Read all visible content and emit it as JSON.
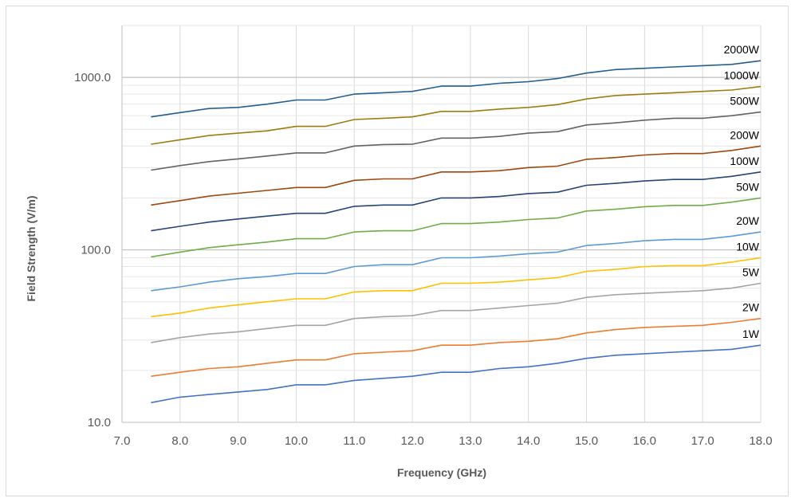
{
  "chart_data": {
    "type": "line",
    "title": "",
    "xlabel": "Frequency (GHz)",
    "ylabel": "Field Strength (V/m)",
    "x_scale": "linear",
    "y_scale": "log",
    "xlim": [
      7.0,
      18.0
    ],
    "ylim": [
      10.0,
      2000.0
    ],
    "x_ticks": [
      7.0,
      8.0,
      9.0,
      10.0,
      11.0,
      12.0,
      13.0,
      14.0,
      15.0,
      16.0,
      17.0,
      18.0
    ],
    "x_tick_labels": [
      "7.0",
      "8.0",
      "9.0",
      "10.0",
      "11.0",
      "12.0",
      "13.0",
      "14.0",
      "15.0",
      "16.0",
      "17.0",
      "18.0"
    ],
    "y_ticks": [
      10,
      100,
      1000
    ],
    "y_tick_labels": [
      "10.0",
      "100.0",
      "1000.0"
    ],
    "grid": true,
    "legend": "labels at line ends (right)",
    "x": [
      7.5,
      8.0,
      8.5,
      9.0,
      9.5,
      10.0,
      10.5,
      11.0,
      11.5,
      12.0,
      12.5,
      13.0,
      13.5,
      14.0,
      14.5,
      15.0,
      15.5,
      16.0,
      16.5,
      17.0,
      17.5,
      18.0
    ],
    "series": [
      {
        "name": "2000W",
        "color": "#255e91",
        "values": [
          590,
          625,
          660,
          670,
          700,
          740,
          740,
          800,
          815,
          830,
          890,
          890,
          925,
          945,
          985,
          1060,
          1110,
          1130,
          1150,
          1170,
          1190,
          1250
        ]
      },
      {
        "name": "1000W",
        "color": "#9e7c0c",
        "values": [
          410,
          435,
          460,
          475,
          490,
          520,
          520,
          570,
          580,
          590,
          635,
          635,
          655,
          670,
          695,
          750,
          785,
          800,
          815,
          830,
          845,
          885
        ]
      },
      {
        "name": "500W",
        "color": "#636363",
        "values": [
          290,
          308,
          325,
          337,
          350,
          365,
          365,
          400,
          408,
          410,
          445,
          445,
          455,
          475,
          485,
          530,
          545,
          565,
          580,
          580,
          600,
          630
        ]
      },
      {
        "name": "200W",
        "color": "#9e480e",
        "values": [
          182,
          193,
          205,
          213,
          221,
          230,
          230,
          253,
          258,
          258,
          283,
          283,
          288,
          300,
          306,
          335,
          343,
          355,
          362,
          362,
          377,
          400
        ]
      },
      {
        "name": "100W",
        "color": "#264478",
        "values": [
          129,
          137,
          145,
          151,
          157,
          163,
          163,
          179,
          182,
          182,
          200,
          200,
          204,
          212,
          216,
          237,
          243,
          251,
          256,
          256,
          267,
          283
        ]
      },
      {
        "name": "50W",
        "color": "#70ad47",
        "values": [
          91,
          97,
          103,
          107,
          111,
          116,
          116,
          127,
          129,
          129,
          142,
          142,
          145,
          150,
          153,
          168,
          172,
          178,
          181,
          181,
          189,
          200
        ]
      },
      {
        "name": "20W",
        "color": "#5b9bd5",
        "values": [
          58,
          61,
          65,
          68,
          70,
          73,
          73,
          80,
          82,
          82,
          90,
          90,
          92,
          95,
          97,
          106,
          109,
          113,
          115,
          115,
          120,
          127
        ]
      },
      {
        "name": "10W",
        "color": "#ffc000",
        "values": [
          41,
          43,
          46,
          48,
          50,
          52,
          52,
          57,
          58,
          58,
          64,
          64,
          65,
          67,
          69,
          75,
          77,
          80,
          81,
          81,
          85,
          90
        ]
      },
      {
        "name": "5W",
        "color": "#a5a5a5",
        "values": [
          29,
          31,
          32.5,
          33.5,
          35,
          36.5,
          36.5,
          40,
          41,
          41.5,
          44.5,
          44.5,
          46,
          47.5,
          49,
          53,
          55,
          56,
          57,
          58,
          60,
          64
        ]
      },
      {
        "name": "2W",
        "color": "#ed7d31",
        "values": [
          18.5,
          19.5,
          20.5,
          21,
          22,
          23,
          23,
          25,
          25.5,
          26,
          28,
          28,
          29,
          29.5,
          30.5,
          33,
          34.5,
          35.5,
          36,
          36.5,
          38,
          40
        ]
      },
      {
        "name": "1W",
        "color": "#4472c4",
        "values": [
          13,
          14,
          14.5,
          15,
          15.5,
          16.5,
          16.5,
          17.5,
          18,
          18.5,
          19.5,
          19.5,
          20.5,
          21,
          22,
          23.5,
          24.5,
          25,
          25.5,
          26,
          26.5,
          28
        ]
      }
    ]
  }
}
